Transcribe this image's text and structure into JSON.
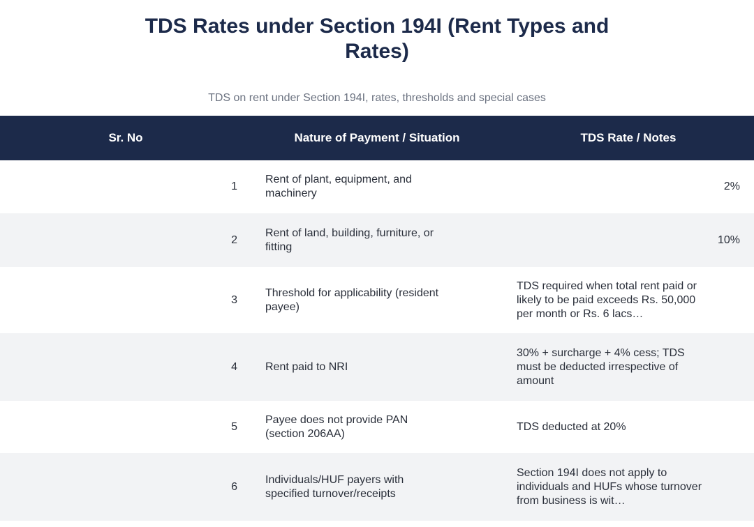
{
  "title": "TDS Rates under Section 194I (Rent Types and Rates)",
  "subtitle": "TDS on rent under Section 194I, rates, thresholds and special cases",
  "table": {
    "headers": [
      "Sr. No",
      "Nature of Payment / Situation",
      "TDS Rate / Notes"
    ],
    "rows": [
      {
        "sr": "1",
        "nature": "Rent of plant, equipment, and machinery",
        "rate": "2%"
      },
      {
        "sr": "2",
        "nature": "Rent of land, building, furniture, or fitting",
        "rate": "10%"
      },
      {
        "sr": "3",
        "nature": "Threshold for applicability (resident payee)",
        "rate": "TDS required when total rent paid or likely to be paid exceeds Rs. 50,000 per month or Rs. 6 lacs…"
      },
      {
        "sr": "4",
        "nature": "Rent paid to NRI",
        "rate": "30% + surcharge + 4% cess; TDS must be deducted irrespective of amount"
      },
      {
        "sr": "5",
        "nature": "Payee does not provide PAN (section 206AA)",
        "rate": "TDS deducted at 20%"
      },
      {
        "sr": "6",
        "nature": "Individuals/HUF payers with specified turnover/receipts",
        "rate": "Section 194I does not apply to individuals and HUFs whose turnover from business is wit…"
      }
    ]
  },
  "colors": {
    "header_bg": "#1c2a4a",
    "title": "#1c2a4a",
    "row_alt": "#f2f3f5"
  }
}
